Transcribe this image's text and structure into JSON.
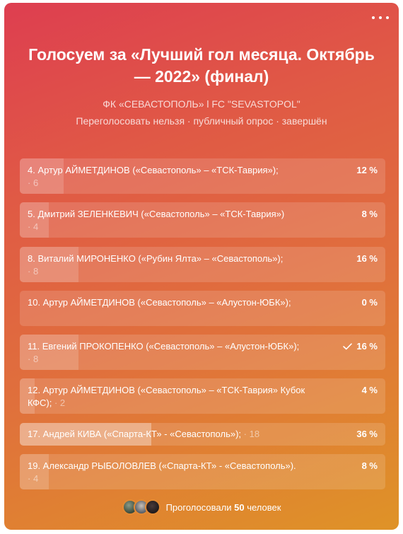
{
  "poll": {
    "title": "Голосуем за «Лучший гол месяца. Октябрь — 2022» (финал)",
    "author": "ФК «СЕВАСТОПОЛЬ» l FC \"SEVASTOPOL\"",
    "meta": "Переголосовать нельзя · публичный опрос · завершён"
  },
  "options": [
    {
      "label": "4. Артур АЙМЕТДИНОВ («Севастополь» – «ТСК-Таврия»);",
      "count": "· 6",
      "percent_label": "12 %",
      "percent": 12
    },
    {
      "label": "5. Дмитрий ЗЕЛЕНКЕВИЧ («Севастополь» – «ТСК-Таврия»)",
      "count": "· 4",
      "percent_label": "8 %",
      "percent": 8
    },
    {
      "label": "8. Виталий МИРОНЕНКО («Рубин Ялта» – «Севастополь»);",
      "count": "· 8",
      "percent_label": "16 %",
      "percent": 16
    },
    {
      "label": "10. Артур АЙМЕТДИНОВ («Севастополь» – «Алустон-ЮБК»);",
      "count": "",
      "percent_label": "0 %",
      "percent": 0
    },
    {
      "label": "11. Евгений ПРОКОПЕНКО («Севастополь» – «Алустон-ЮБК»);",
      "count": "· 8",
      "percent_label": "16 %",
      "percent": 16,
      "selected": true
    },
    {
      "label": "12. Артур АЙМЕТДИНОВ («Севастополь» – «ТСК-Таврия» Кубок КФС);",
      "count": "· 2",
      "percent_label": "4 %",
      "percent": 4
    },
    {
      "label": "17. Андрей КИВА («Спарта-КТ» - «Севастополь»);",
      "count": "· 18",
      "percent_label": "36 %",
      "percent": 36,
      "top": true
    },
    {
      "label": "19. Александр РЫБОЛОВЛЕВ («Спарта-КТ» - «Севастополь»).",
      "count": "· 4",
      "percent_label": "8 %",
      "percent": 8
    }
  ],
  "footer": {
    "prefix": "Проголосовали",
    "count": "50",
    "suffix": "человек"
  },
  "icons": {
    "menu": "more-horizontal-icon",
    "check": "check-icon"
  },
  "colors": {
    "gradient_start": "#de3e50",
    "gradient_end": "#df9327",
    "text": "#ffffff"
  }
}
